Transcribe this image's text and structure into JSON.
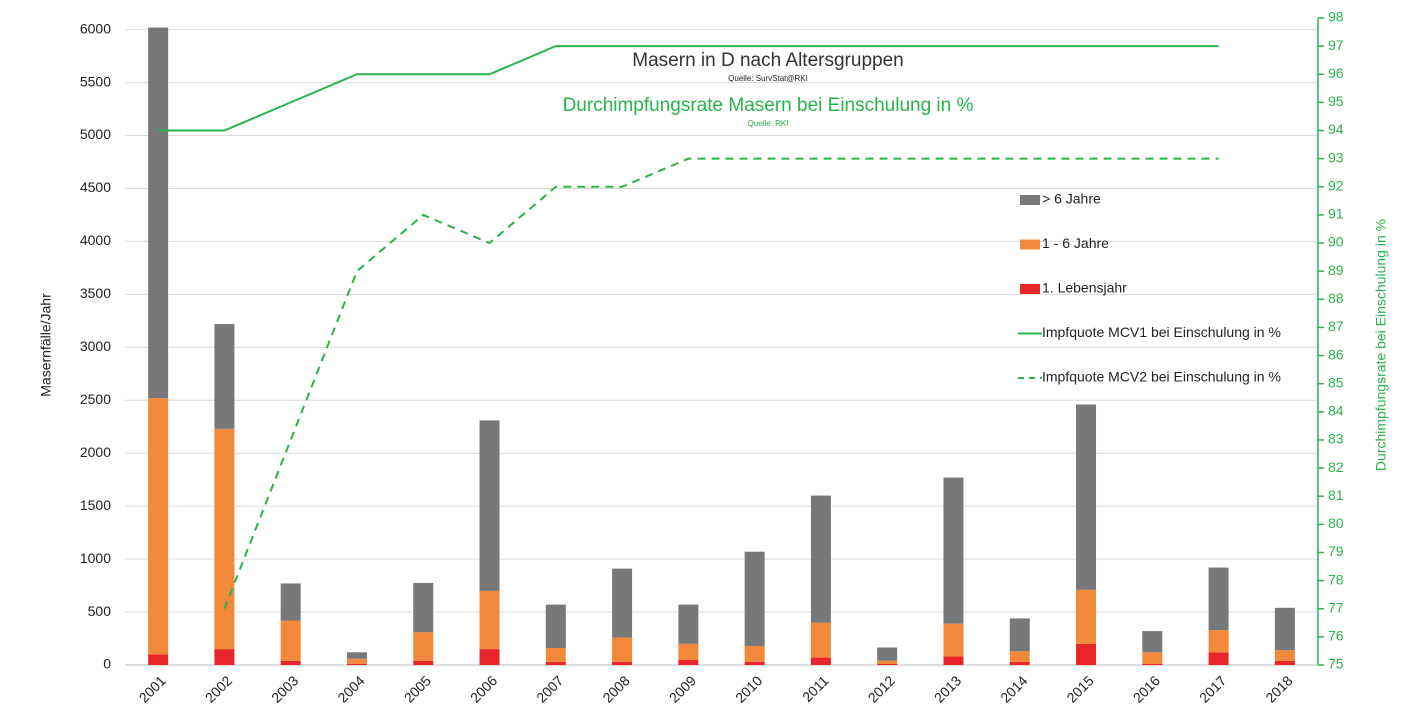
{
  "chart_data": {
    "type": "bar",
    "stacked": true,
    "title": "Masern in D nach Altersgruppen",
    "title_source": "Quelle: SurvStat@RKI",
    "subtitle": "Durchimpfungsrate Masern bei Einschulung in %",
    "subtitle_source": "Quelle: RKI",
    "y_label": "Masernfälle/Jahr",
    "y2_label": "Durchimpfungsrate bei Einschulung in %",
    "categories": [
      "2001",
      "2002",
      "2003",
      "2004",
      "2005",
      "2006",
      "2007",
      "2008",
      "2009",
      "2010",
      "2011",
      "2012",
      "2013",
      "2014",
      "2015",
      "2016",
      "2017",
      "2018"
    ],
    "ylim": [
      0,
      6110
    ],
    "yticks": [
      0,
      500,
      1000,
      1500,
      2000,
      2500,
      3000,
      3500,
      4000,
      4500,
      5000,
      5500,
      6000
    ],
    "y2lim": [
      75,
      98
    ],
    "y2ticks": [
      75,
      76,
      77,
      78,
      79,
      80,
      81,
      82,
      83,
      84,
      85,
      86,
      87,
      88,
      89,
      90,
      91,
      92,
      93,
      94,
      95,
      96,
      97,
      98
    ],
    "grid": true,
    "legend": "right",
    "series": [
      {
        "name": "1. Lebensjahr",
        "color": "#e8262a",
        "values": [
          100,
          150,
          40,
          10,
          40,
          150,
          30,
          30,
          50,
          30,
          70,
          10,
          80,
          30,
          200,
          10,
          120,
          40
        ]
      },
      {
        "name": "1 - 6 Jahre",
        "color": "#f2883a",
        "values": [
          2420,
          2080,
          380,
          50,
          270,
          550,
          130,
          230,
          150,
          150,
          330,
          30,
          310,
          100,
          510,
          110,
          210,
          100
        ]
      },
      {
        "name": "> 6 Jahre",
        "color": "#77787a",
        "values": [
          3500,
          990,
          350,
          60,
          465,
          1610,
          410,
          650,
          370,
          890,
          1200,
          125,
          1380,
          310,
          1750,
          200,
          590,
          400
        ]
      },
      {
        "name": "Impfquote MCV1 bei Einschulung in %",
        "color": "#2ab34a",
        "type": "line",
        "axis": "y2",
        "dashed": false,
        "values": [
          94,
          94,
          95,
          96,
          96,
          96,
          97,
          97,
          97,
          97,
          97,
          97,
          97,
          97,
          97,
          97,
          97,
          null
        ]
      },
      {
        "name": "Impfquote MCV2 bei Einschulung in %",
        "color": "#2ab34a",
        "type": "line",
        "axis": "y2",
        "dashed": true,
        "values": [
          null,
          77,
          83,
          89,
          91,
          90,
          92,
          92,
          93,
          93,
          93,
          93,
          93,
          93,
          93,
          93,
          93,
          null
        ]
      }
    ]
  }
}
